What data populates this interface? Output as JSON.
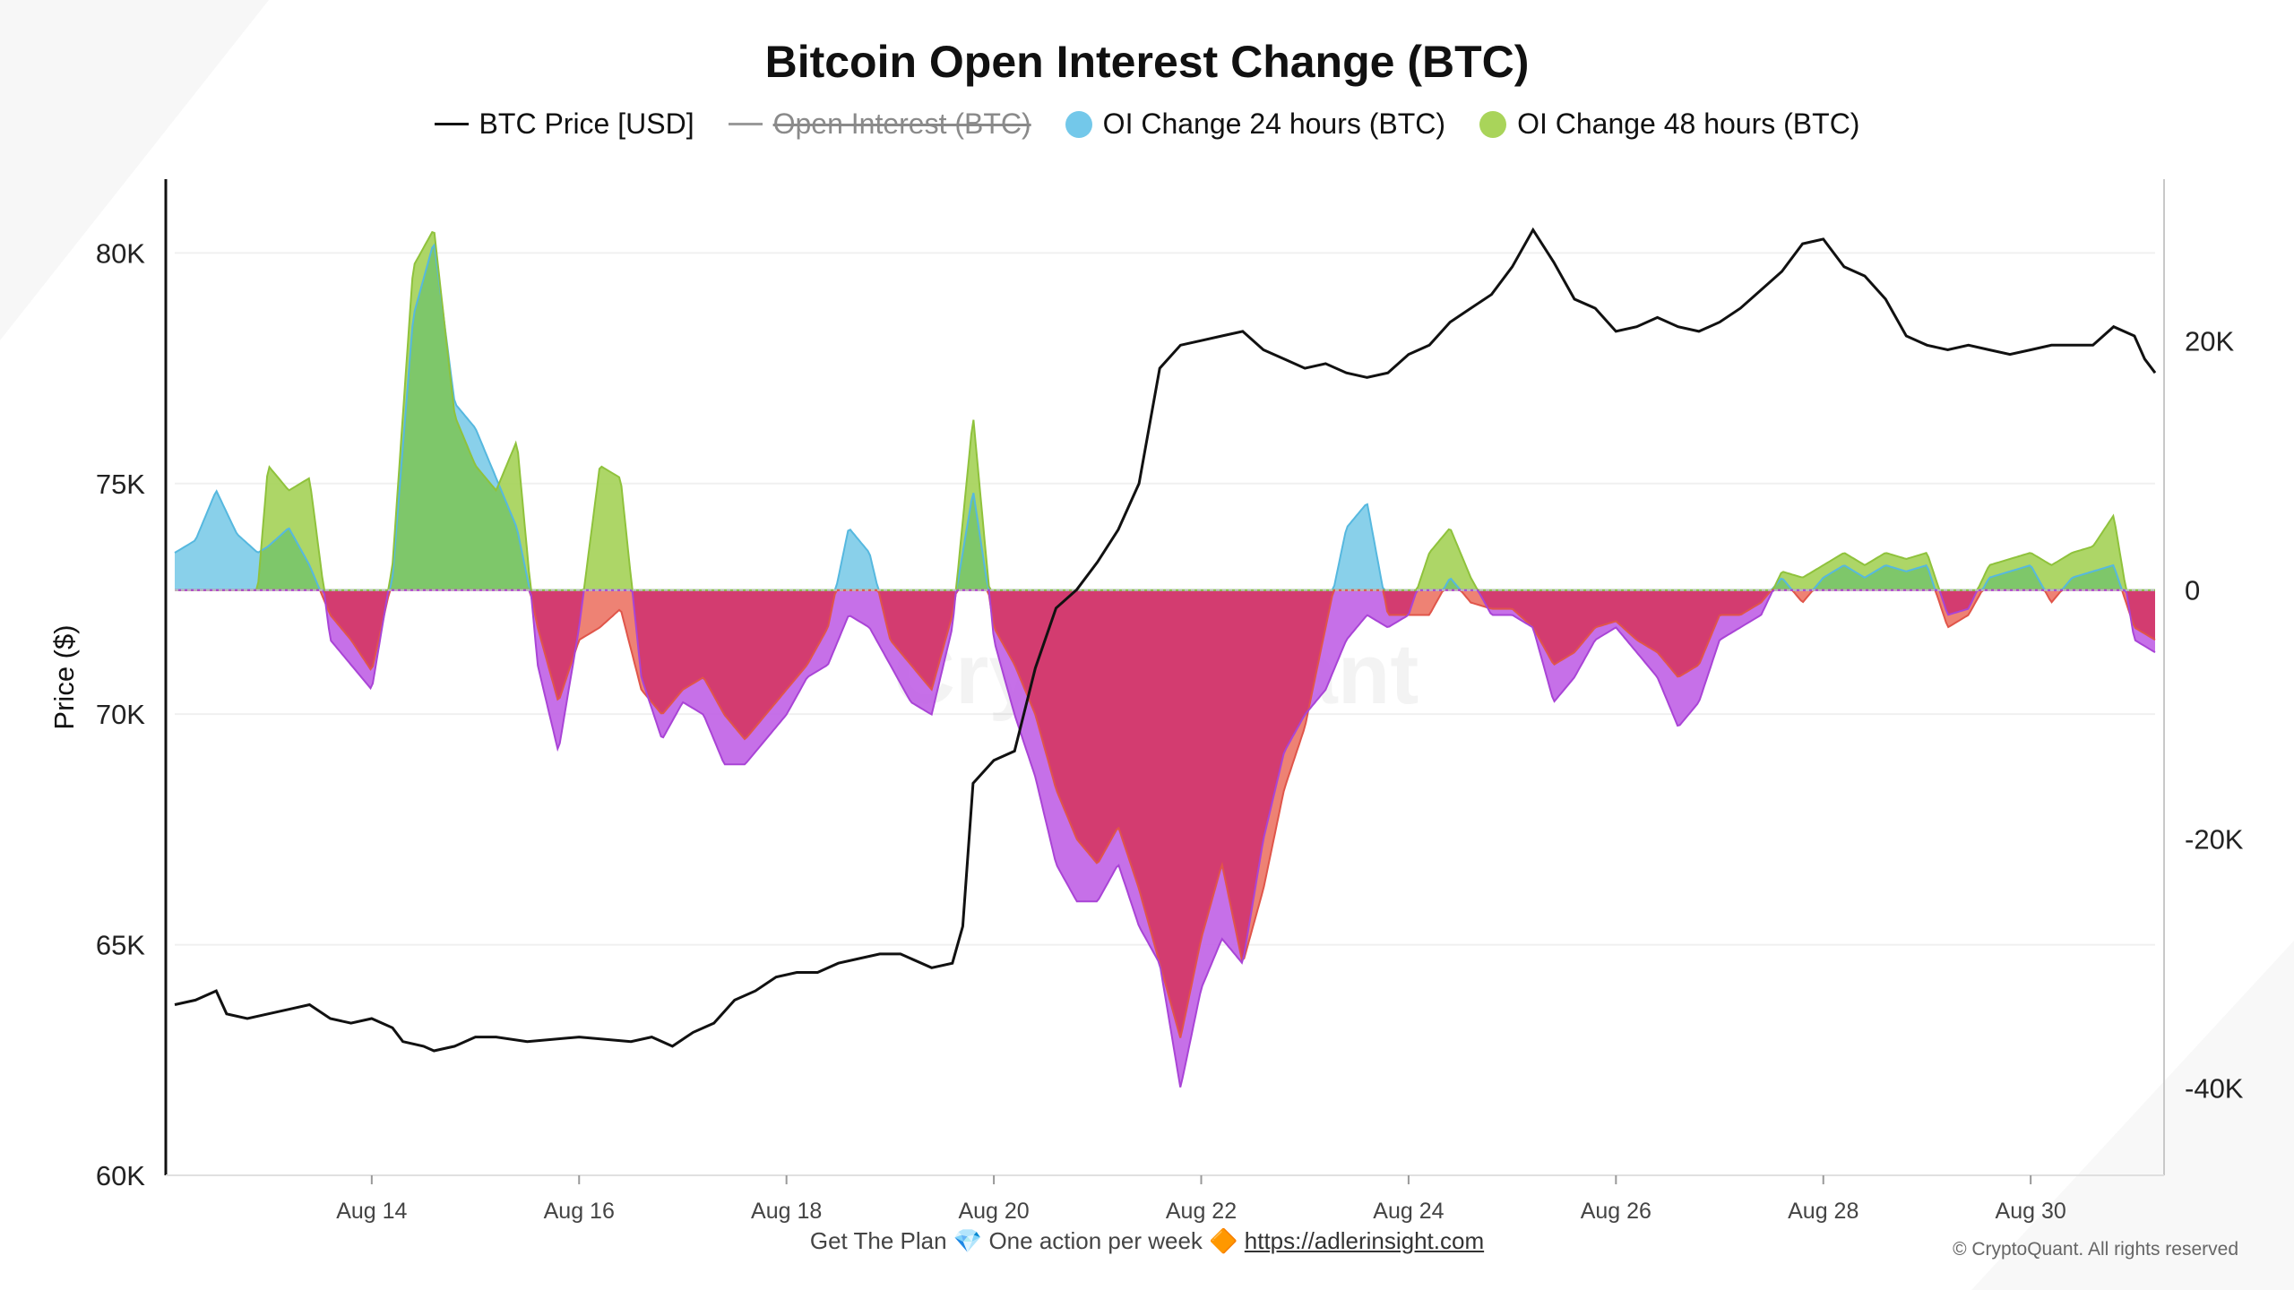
{
  "title": "Bitcoin Open Interest Change (BTC)",
  "legend": [
    {
      "label": "BTC Price [USD]",
      "type": "line",
      "color": "#111111",
      "hidden": false
    },
    {
      "label": "Open Interest (BTC)",
      "type": "line",
      "color": "#9a9a9a",
      "hidden": true
    },
    {
      "label": "OI Change 24 hours (BTC)",
      "type": "dot",
      "color": "#73c8ea",
      "hidden": false
    },
    {
      "label": "OI Change 48 hours (BTC)",
      "type": "dot",
      "color": "#a9d45a",
      "hidden": false
    }
  ],
  "footer": {
    "text_before": "Get The Plan",
    "gem_icon": "💎",
    "text_middle": "One action per week",
    "diamond_icon": "🔶",
    "link": "https://adlerinsight.com"
  },
  "copyright": "© CryptoQuant. All rights reserved",
  "watermark": "CryptoQuant",
  "chart_data": {
    "type": "area",
    "ylabel_left": "Price ($)",
    "ylim_left": [
      60000,
      81600
    ],
    "ylim_right": [
      -47000,
      33000
    ],
    "left_ticks": [
      "60K",
      "65K",
      "70K",
      "75K",
      "80K"
    ],
    "right_ticks": [
      "-40K",
      "-20K",
      "0",
      "20K"
    ],
    "x_ticks": [
      "Aug 14",
      "Aug 16",
      "Aug 18",
      "Aug 20",
      "Aug 22",
      "Aug 24",
      "Aug 26",
      "Aug 28",
      "Aug 30"
    ],
    "x_range": [
      12.1,
      31.2
    ],
    "colors": {
      "price": "#111111",
      "oi24_pos": "#7ccbe8",
      "oi48_pos": "#a4d257",
      "both_pos": "#7cc66a",
      "oi24_neg": "#ed7b6d",
      "oi48_neg": "#c060e6",
      "both_neg": "#d43a6a"
    },
    "btc_price": [
      [
        12.1,
        63700
      ],
      [
        12.3,
        63800
      ],
      [
        12.5,
        64000
      ],
      [
        12.6,
        63500
      ],
      [
        12.8,
        63400
      ],
      [
        13.0,
        63500
      ],
      [
        13.2,
        63600
      ],
      [
        13.4,
        63700
      ],
      [
        13.6,
        63400
      ],
      [
        13.8,
        63300
      ],
      [
        14.0,
        63400
      ],
      [
        14.2,
        63200
      ],
      [
        14.3,
        62900
      ],
      [
        14.5,
        62800
      ],
      [
        14.6,
        62700
      ],
      [
        14.8,
        62800
      ],
      [
        15.0,
        63000
      ],
      [
        15.2,
        63000
      ],
      [
        15.5,
        62900
      ],
      [
        16.0,
        63000
      ],
      [
        16.5,
        62900
      ],
      [
        16.7,
        63000
      ],
      [
        16.9,
        62800
      ],
      [
        17.1,
        63100
      ],
      [
        17.3,
        63300
      ],
      [
        17.5,
        63800
      ],
      [
        17.7,
        64000
      ],
      [
        17.9,
        64300
      ],
      [
        18.1,
        64400
      ],
      [
        18.3,
        64400
      ],
      [
        18.5,
        64600
      ],
      [
        18.7,
        64700
      ],
      [
        18.9,
        64800
      ],
      [
        19.1,
        64800
      ],
      [
        19.4,
        64500
      ],
      [
        19.6,
        64600
      ],
      [
        19.7,
        65400
      ],
      [
        19.8,
        68500
      ],
      [
        20.0,
        69000
      ],
      [
        20.2,
        69200
      ],
      [
        20.4,
        71000
      ],
      [
        20.6,
        72300
      ],
      [
        20.8,
        72700
      ],
      [
        21.0,
        73300
      ],
      [
        21.2,
        74000
      ],
      [
        21.4,
        75000
      ],
      [
        21.6,
        77500
      ],
      [
        21.8,
        78000
      ],
      [
        22.0,
        78100
      ],
      [
        22.2,
        78200
      ],
      [
        22.4,
        78300
      ],
      [
        22.6,
        77900
      ],
      [
        22.8,
        77700
      ],
      [
        23.0,
        77500
      ],
      [
        23.2,
        77600
      ],
      [
        23.4,
        77400
      ],
      [
        23.6,
        77300
      ],
      [
        23.8,
        77400
      ],
      [
        24.0,
        77800
      ],
      [
        24.2,
        78000
      ],
      [
        24.4,
        78500
      ],
      [
        24.6,
        78800
      ],
      [
        24.8,
        79100
      ],
      [
        25.0,
        79700
      ],
      [
        25.2,
        80500
      ],
      [
        25.4,
        79800
      ],
      [
        25.6,
        79000
      ],
      [
        25.8,
        78800
      ],
      [
        26.0,
        78300
      ],
      [
        26.2,
        78400
      ],
      [
        26.4,
        78600
      ],
      [
        26.6,
        78400
      ],
      [
        26.8,
        78300
      ],
      [
        27.0,
        78500
      ],
      [
        27.2,
        78800
      ],
      [
        27.4,
        79200
      ],
      [
        27.6,
        79600
      ],
      [
        27.8,
        80200
      ],
      [
        28.0,
        80300
      ],
      [
        28.2,
        79700
      ],
      [
        28.4,
        79500
      ],
      [
        28.6,
        79000
      ],
      [
        28.8,
        78200
      ],
      [
        29.0,
        78000
      ],
      [
        29.2,
        77900
      ],
      [
        29.4,
        78000
      ],
      [
        29.6,
        77900
      ],
      [
        29.8,
        77800
      ],
      [
        30.0,
        77900
      ],
      [
        30.2,
        78000
      ],
      [
        30.4,
        78000
      ],
      [
        30.6,
        78000
      ],
      [
        30.8,
        78400
      ],
      [
        31.0,
        78200
      ],
      [
        31.1,
        77700
      ],
      [
        31.2,
        77400
      ]
    ],
    "oi_change_24h": [
      [
        12.1,
        3000
      ],
      [
        12.3,
        4000
      ],
      [
        12.5,
        8000
      ],
      [
        12.7,
        4500
      ],
      [
        12.9,
        3000
      ],
      [
        13.0,
        3500
      ],
      [
        13.2,
        5000
      ],
      [
        13.4,
        2000
      ],
      [
        13.6,
        -2000
      ],
      [
        13.8,
        -4000
      ],
      [
        14.0,
        -6500
      ],
      [
        14.2,
        1000
      ],
      [
        14.4,
        22000
      ],
      [
        14.6,
        28000
      ],
      [
        14.8,
        15000
      ],
      [
        15.0,
        13000
      ],
      [
        15.2,
        9000
      ],
      [
        15.4,
        5000
      ],
      [
        15.6,
        -3000
      ],
      [
        15.8,
        -9000
      ],
      [
        16.0,
        -4000
      ],
      [
        16.2,
        -3000
      ],
      [
        16.4,
        -1500
      ],
      [
        16.6,
        -8000
      ],
      [
        16.8,
        -10000
      ],
      [
        17.0,
        -8000
      ],
      [
        17.2,
        -7000
      ],
      [
        17.4,
        -10000
      ],
      [
        17.6,
        -12000
      ],
      [
        17.8,
        -10000
      ],
      [
        18.0,
        -8000
      ],
      [
        18.2,
        -6000
      ],
      [
        18.4,
        -3000
      ],
      [
        18.6,
        5000
      ],
      [
        18.8,
        3000
      ],
      [
        19.0,
        -4000
      ],
      [
        19.2,
        -6000
      ],
      [
        19.4,
        -8000
      ],
      [
        19.6,
        -2000
      ],
      [
        19.8,
        8000
      ],
      [
        20.0,
        -3000
      ],
      [
        20.2,
        -6000
      ],
      [
        20.4,
        -10000
      ],
      [
        20.6,
        -16000
      ],
      [
        20.8,
        -20000
      ],
      [
        21.0,
        -22000
      ],
      [
        21.2,
        -19000
      ],
      [
        21.4,
        -24000
      ],
      [
        21.6,
        -30000
      ],
      [
        21.8,
        -36000
      ],
      [
        22.0,
        -28000
      ],
      [
        22.2,
        -22000
      ],
      [
        22.4,
        -30000
      ],
      [
        22.6,
        -24000
      ],
      [
        22.8,
        -16000
      ],
      [
        23.0,
        -11000
      ],
      [
        23.2,
        -3000
      ],
      [
        23.4,
        5000
      ],
      [
        23.6,
        7000
      ],
      [
        23.8,
        -2000
      ],
      [
        24.0,
        -2000
      ],
      [
        24.2,
        -2000
      ],
      [
        24.4,
        1000
      ],
      [
        24.6,
        -1000
      ],
      [
        24.8,
        -1500
      ],
      [
        25.0,
        -1500
      ],
      [
        25.2,
        -3000
      ],
      [
        25.4,
        -6000
      ],
      [
        25.6,
        -5000
      ],
      [
        25.8,
        -3000
      ],
      [
        26.0,
        -2500
      ],
      [
        26.2,
        -4000
      ],
      [
        26.4,
        -5000
      ],
      [
        26.6,
        -7000
      ],
      [
        26.8,
        -6000
      ],
      [
        27.0,
        -2000
      ],
      [
        27.2,
        -2000
      ],
      [
        27.4,
        -1000
      ],
      [
        27.6,
        1000
      ],
      [
        27.8,
        -1000
      ],
      [
        28.0,
        1000
      ],
      [
        28.2,
        2000
      ],
      [
        28.4,
        1000
      ],
      [
        28.6,
        2000
      ],
      [
        28.8,
        1500
      ],
      [
        29.0,
        2000
      ],
      [
        29.2,
        -3000
      ],
      [
        29.4,
        -2000
      ],
      [
        29.6,
        1000
      ],
      [
        29.8,
        1500
      ],
      [
        30.0,
        2000
      ],
      [
        30.2,
        -1000
      ],
      [
        30.4,
        1000
      ],
      [
        30.6,
        1500
      ],
      [
        30.8,
        2000
      ],
      [
        31.0,
        -3000
      ],
      [
        31.2,
        -4000
      ]
    ],
    "oi_change_48h": [
      [
        12.1,
        0
      ],
      [
        12.5,
        0
      ],
      [
        12.9,
        0
      ],
      [
        13.0,
        10000
      ],
      [
        13.2,
        8000
      ],
      [
        13.4,
        9000
      ],
      [
        13.6,
        -4000
      ],
      [
        13.8,
        -6000
      ],
      [
        14.0,
        -8000
      ],
      [
        14.2,
        2000
      ],
      [
        14.4,
        26000
      ],
      [
        14.6,
        29000
      ],
      [
        14.8,
        14000
      ],
      [
        15.0,
        10000
      ],
      [
        15.2,
        8000
      ],
      [
        15.4,
        12000
      ],
      [
        15.6,
        -6000
      ],
      [
        15.8,
        -13000
      ],
      [
        16.0,
        -3000
      ],
      [
        16.2,
        10000
      ],
      [
        16.4,
        9000
      ],
      [
        16.6,
        -7000
      ],
      [
        16.8,
        -12000
      ],
      [
        17.0,
        -9000
      ],
      [
        17.2,
        -10000
      ],
      [
        17.4,
        -14000
      ],
      [
        17.6,
        -14000
      ],
      [
        17.8,
        -12000
      ],
      [
        18.0,
        -10000
      ],
      [
        18.2,
        -7000
      ],
      [
        18.4,
        -6000
      ],
      [
        18.6,
        -2000
      ],
      [
        18.8,
        -3000
      ],
      [
        19.0,
        -6000
      ],
      [
        19.2,
        -9000
      ],
      [
        19.4,
        -10000
      ],
      [
        19.6,
        -3000
      ],
      [
        19.8,
        14000
      ],
      [
        20.0,
        -4000
      ],
      [
        20.2,
        -10000
      ],
      [
        20.4,
        -15000
      ],
      [
        20.6,
        -22000
      ],
      [
        20.8,
        -25000
      ],
      [
        21.0,
        -25000
      ],
      [
        21.2,
        -22000
      ],
      [
        21.4,
        -27000
      ],
      [
        21.6,
        -30000
      ],
      [
        21.8,
        -40000
      ],
      [
        22.0,
        -32000
      ],
      [
        22.2,
        -28000
      ],
      [
        22.4,
        -30000
      ],
      [
        22.6,
        -20000
      ],
      [
        22.8,
        -13000
      ],
      [
        23.0,
        -10000
      ],
      [
        23.2,
        -8000
      ],
      [
        23.4,
        -4000
      ],
      [
        23.6,
        -2000
      ],
      [
        23.8,
        -3000
      ],
      [
        24.0,
        -2000
      ],
      [
        24.2,
        3000
      ],
      [
        24.4,
        5000
      ],
      [
        24.6,
        1000
      ],
      [
        24.8,
        -2000
      ],
      [
        25.0,
        -2000
      ],
      [
        25.2,
        -3000
      ],
      [
        25.4,
        -9000
      ],
      [
        25.6,
        -7000
      ],
      [
        25.8,
        -4000
      ],
      [
        26.0,
        -3000
      ],
      [
        26.2,
        -5000
      ],
      [
        26.4,
        -7000
      ],
      [
        26.6,
        -11000
      ],
      [
        26.8,
        -9000
      ],
      [
        27.0,
        -4000
      ],
      [
        27.2,
        -3000
      ],
      [
        27.4,
        -2000
      ],
      [
        27.6,
        1500
      ],
      [
        27.8,
        1000
      ],
      [
        28.0,
        2000
      ],
      [
        28.2,
        3000
      ],
      [
        28.4,
        2000
      ],
      [
        28.6,
        3000
      ],
      [
        28.8,
        2500
      ],
      [
        29.0,
        3000
      ],
      [
        29.2,
        -2000
      ],
      [
        29.4,
        -1500
      ],
      [
        29.6,
        2000
      ],
      [
        29.8,
        2500
      ],
      [
        30.0,
        3000
      ],
      [
        30.2,
        2000
      ],
      [
        30.4,
        3000
      ],
      [
        30.6,
        3500
      ],
      [
        30.8,
        6000
      ],
      [
        31.0,
        -4000
      ],
      [
        31.2,
        -5000
      ]
    ]
  }
}
